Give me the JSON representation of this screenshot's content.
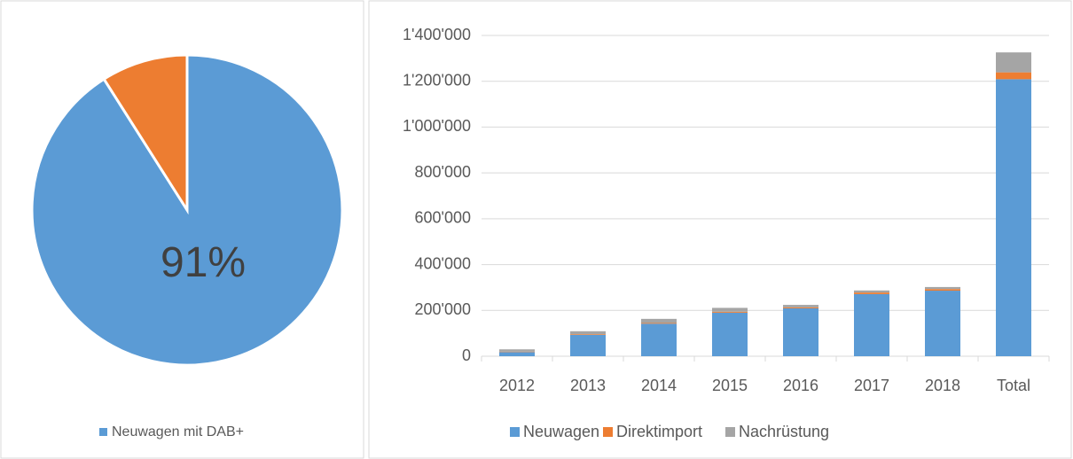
{
  "chart_data": [
    {
      "type": "pie",
      "categories": [
        "Neuwagen mit DAB+",
        null
      ],
      "values": [
        91,
        9
      ],
      "value_labels": [
        "91%",
        null
      ],
      "colors": [
        "#5b9bd5",
        "#ed7d31"
      ]
    },
    {
      "type": "stacked_bar",
      "categories": [
        "2012",
        "2013",
        "2014",
        "2015",
        "2016",
        "2017",
        "2018",
        "Total"
      ],
      "series": [
        {
          "name": "Neuwagen",
          "color": "#5b9bd5",
          "values": [
            18000,
            93000,
            142000,
            190000,
            209000,
            271000,
            286000,
            1209000
          ]
        },
        {
          "name": "Direktimport",
          "color": "#ed7d31",
          "values": [
            2000,
            3000,
            3000,
            4000,
            4000,
            7000,
            7000,
            30000
          ]
        },
        {
          "name": "Nachrüstung",
          "color": "#a5a5a5",
          "values": [
            10000,
            13000,
            18000,
            17000,
            11000,
            9000,
            9000,
            87000
          ]
        }
      ],
      "ylim": [
        0,
        1400000
      ],
      "yticks": [
        0,
        {
          "value": 200000,
          "label": "200'000"
        },
        {
          "value": 400000,
          "label": "400'000"
        },
        {
          "value": 600000,
          "label": "600'000"
        },
        {
          "value": 800000,
          "label": "800'000"
        },
        {
          "value": 1000000,
          "label": "1'000'000"
        },
        {
          "value": 1200000,
          "label": "1'200'000"
        },
        {
          "value": 1400000,
          "label": "1'400'000"
        }
      ],
      "grid": true
    }
  ]
}
